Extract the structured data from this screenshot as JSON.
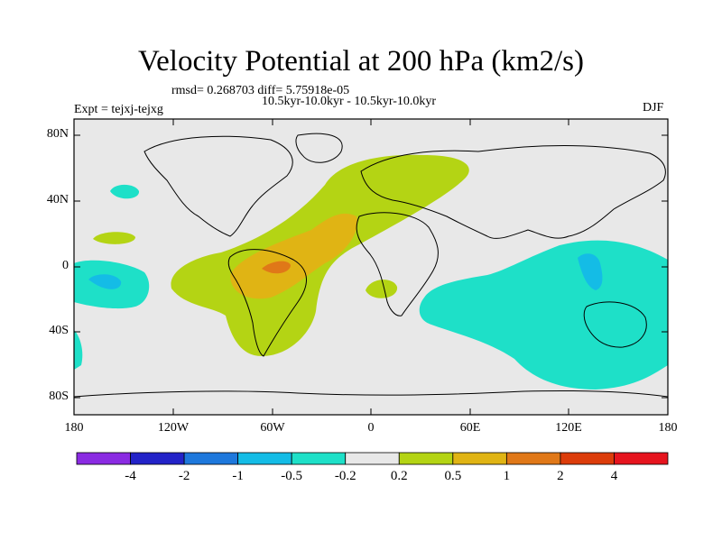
{
  "title": "Velocity Potential at 200 hPa (km2/s)",
  "stats": "rmsd= 0.268703 diff= 5.75918e-05",
  "period": "10.5kyr-10.0kyr - 10.5kyr-10.0kyr",
  "experiment": "Expt = tejxj-tejxg",
  "season": "DJF",
  "map": {
    "background_color": "#e8e8e8",
    "lat_ticks": [
      "80N",
      "40N",
      "0",
      "40S",
      "80S"
    ],
    "lon_ticks": [
      "180",
      "120W",
      "60W",
      "0",
      "60E",
      "120E",
      "180"
    ]
  },
  "colorbar": {
    "colors": [
      "#8a2be2",
      "#2323c8",
      "#1e78dc",
      "#14bce6",
      "#1ee0c8",
      "#e8e8e8",
      "#b4d414",
      "#e0b414",
      "#e07818",
      "#dc3c0a",
      "#e6141e"
    ],
    "labels": [
      "-4",
      "-2",
      "-1",
      "-0.5",
      "-0.2",
      "0.2",
      "0.5",
      "1",
      "2",
      "4"
    ]
  }
}
